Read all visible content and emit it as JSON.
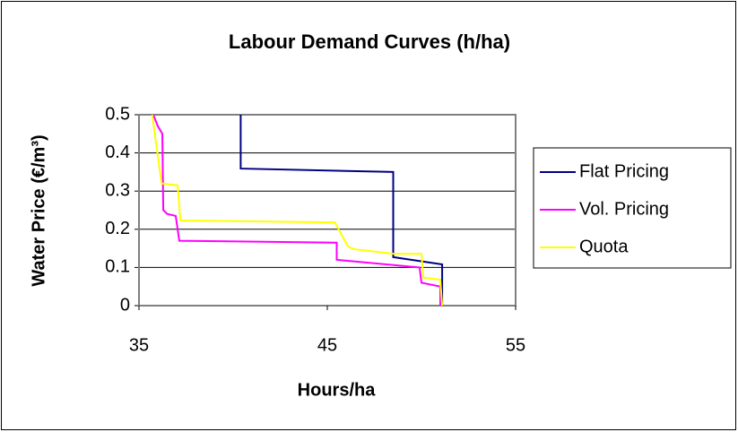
{
  "chart_data": {
    "type": "line",
    "title": "Labour Demand Curves (h/ha)",
    "xlabel": "Hours/ha",
    "ylabel": "Water Price (€/m³)",
    "xlim": [
      35,
      55
    ],
    "xticks": [
      35,
      45,
      55
    ],
    "ylim": [
      0,
      0.5
    ],
    "yticks": [
      0,
      0.1,
      0.2,
      0.3,
      0.4,
      0.5
    ],
    "grid": true,
    "legend": "right",
    "series": [
      {
        "name": "Flat Pricing",
        "color": "#000080",
        "x": [
          40.4,
          40.4,
          48.5,
          48.5,
          51.1,
          51.1
        ],
        "values": [
          0.5,
          0.359,
          0.35,
          0.127,
          0.108,
          0
        ]
      },
      {
        "name": "Vol. Pricing",
        "color": "#ff00ff",
        "x": [
          35.76,
          36.0,
          36.24,
          36.29,
          36.5,
          36.95,
          37.14,
          45.5,
          45.5,
          49.9,
          50.0,
          51.0,
          51.0
        ],
        "values": [
          0.5,
          0.47,
          0.45,
          0.25,
          0.24,
          0.235,
          0.17,
          0.165,
          0.12,
          0.1,
          0.06,
          0.05,
          0
        ]
      },
      {
        "name": "Quota",
        "color": "#ffff00",
        "x": [
          35.7,
          36.2,
          37.05,
          37.2,
          45.4,
          46.1,
          46.4,
          48.5,
          50.0,
          50.1,
          51.0,
          51.1
        ],
        "values": [
          0.5,
          0.32,
          0.315,
          0.223,
          0.218,
          0.155,
          0.148,
          0.136,
          0.136,
          0.073,
          0.068,
          0
        ]
      }
    ]
  }
}
